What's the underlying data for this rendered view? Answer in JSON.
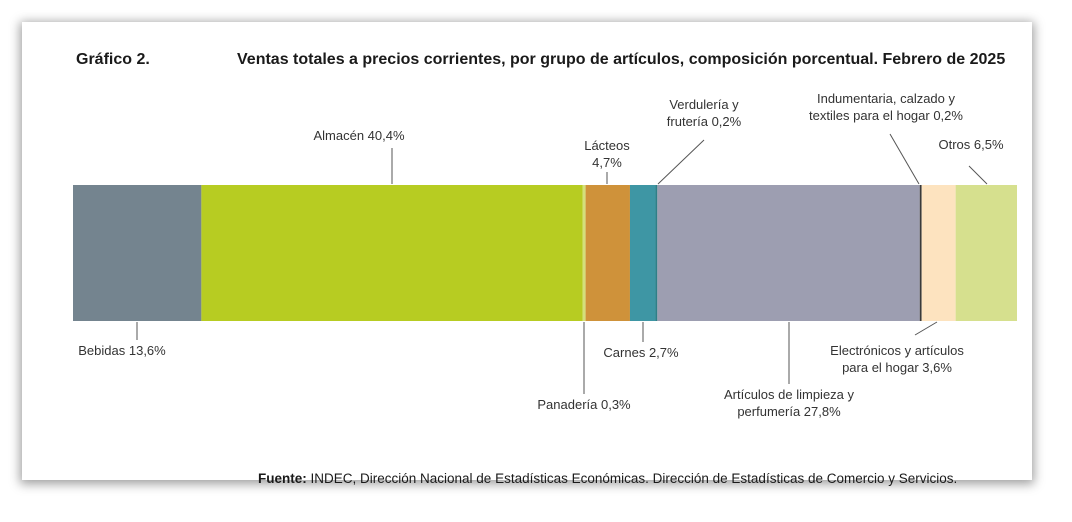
{
  "header": {
    "figure_number": "Gráfico 2.",
    "title": "Ventas totales a precios corrientes, por grupo de artículos, composición porcentual. Febrero de 2025"
  },
  "footer": {
    "source_label": "Fuente:",
    "source_text": " INDEC, Dirección Nacional de Estadísticas Económicas. Dirección de Estadísticas de Comercio y Servicios."
  },
  "chart_data": {
    "type": "bar",
    "orientation": "horizontal-stacked-100",
    "title": "Ventas totales a precios corrientes, por grupo de artículos, composición porcentual. Febrero de 2025",
    "unit": "%",
    "segments": [
      {
        "name": "Bebidas",
        "value": 13.6,
        "color": "#74848f",
        "label_lines": [
          "Bebidas 13,6%"
        ]
      },
      {
        "name": "Almacén",
        "value": 40.4,
        "color": "#b7cc22",
        "label_lines": [
          "Almacén 40,4%"
        ]
      },
      {
        "name": "Panadería",
        "value": 0.3,
        "color": "#d4e07a",
        "label_lines": [
          "Panadería 0,3%"
        ]
      },
      {
        "name": "Lácteos",
        "value": 4.7,
        "color": "#cf923a",
        "label_lines": [
          "Lácteos",
          "4,7%"
        ]
      },
      {
        "name": "Carnes",
        "value": 2.7,
        "color": "#3e96a4",
        "label_lines": [
          "Carnes 2,7%"
        ]
      },
      {
        "name": "Verdulería y frutería",
        "value": 0.2,
        "color": "#2f7f87",
        "label_lines": [
          "Verdulería y",
          "frutería 0,2%"
        ]
      },
      {
        "name": "Artículos de limpieza y perfumería",
        "value": 27.8,
        "color": "#9d9eb1",
        "label_lines": [
          "Artículos de limpieza y",
          "perfumería 27,8%"
        ]
      },
      {
        "name": "Indumentaria, calzado y textiles para el hogar",
        "value": 0.2,
        "color": "#3a3a3a",
        "label_lines": [
          "Indumentaria, calzado y",
          "textiles para el hogar 0,2%"
        ]
      },
      {
        "name": "Electrónicos y artículos para el hogar",
        "value": 3.6,
        "color": "#fde3bf",
        "label_lines": [
          "Electrónicos y artículos",
          "para el hogar 3,6%"
        ]
      },
      {
        "name": "Otros",
        "value": 6.5,
        "color": "#d6e08e",
        "label_lines": [
          "Otros 6,5%"
        ]
      }
    ]
  }
}
